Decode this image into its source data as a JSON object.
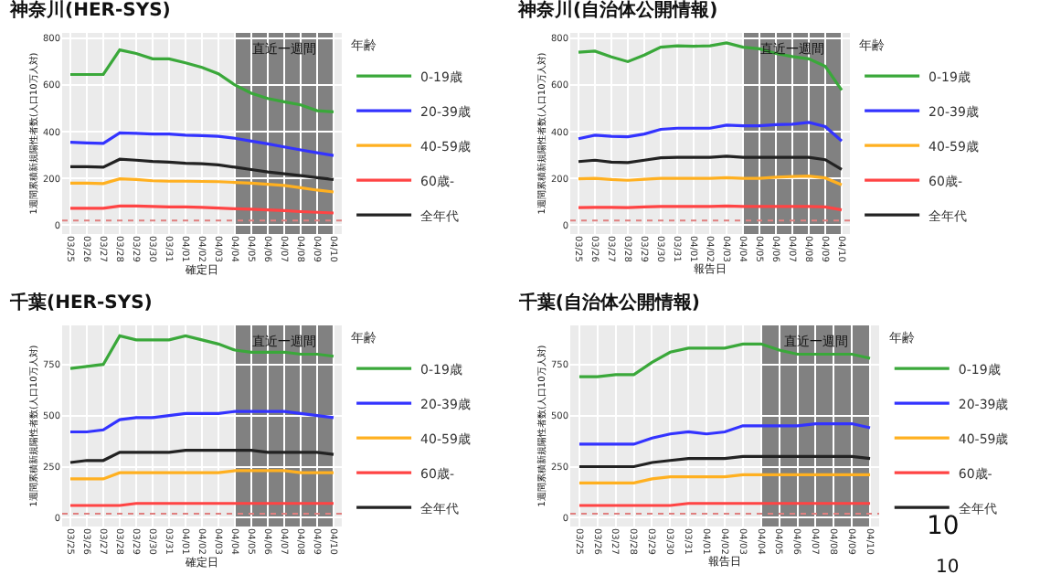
{
  "chart_data": [
    {
      "type": "line",
      "title": "神奈川(HER-SYS)",
      "xlabel": "確定日",
      "ylabel": "1週間累積新規陽性者数(人口10万人対)",
      "legend_title": "年齢",
      "legend": "right",
      "grid": true,
      "categories": [
        "03/25",
        "03/26",
        "03/27",
        "03/28",
        "03/29",
        "03/30",
        "03/31",
        "04/01",
        "04/02",
        "04/03",
        "04/04",
        "04/05",
        "04/06",
        "04/07",
        "04/08",
        "04/09",
        "04/10"
      ],
      "ylim": [
        -38,
        823
      ],
      "yticks": [
        0,
        200,
        400,
        600,
        800
      ],
      "series": [
        {
          "name": "0-19歳",
          "color": "#3aa83a",
          "values": [
            645,
            645,
            645,
            750,
            735,
            712,
            712,
            695,
            675,
            648,
            600,
            565,
            542,
            528,
            515,
            490,
            485
          ]
        },
        {
          "name": "20-39歳",
          "color": "#3333ff",
          "values": [
            355,
            352,
            350,
            395,
            393,
            390,
            390,
            385,
            383,
            380,
            372,
            360,
            348,
            335,
            322,
            310,
            298
          ]
        },
        {
          "name": "40-59歳",
          "color": "#ffb020",
          "values": [
            180,
            180,
            178,
            198,
            195,
            190,
            188,
            188,
            187,
            186,
            183,
            180,
            175,
            170,
            160,
            150,
            142
          ]
        },
        {
          "name": "60歳-",
          "color": "#ff4444",
          "values": [
            72,
            72,
            72,
            82,
            82,
            80,
            78,
            78,
            76,
            73,
            70,
            68,
            65,
            62,
            58,
            55,
            52
          ]
        },
        {
          "name": "全年代",
          "color": "#222222",
          "values": [
            250,
            250,
            248,
            282,
            278,
            273,
            270,
            265,
            263,
            258,
            248,
            238,
            228,
            220,
            212,
            203,
            195
          ]
        }
      ],
      "bands": [
        {
          "axis": "x",
          "from": "04/04",
          "to": "04/10",
          "label": "直近一週間",
          "color": "#6e6e6e"
        }
      ],
      "ref_lines": [
        {
          "axis": "y",
          "value": 20,
          "color": "#e08080",
          "line_style": "dotted"
        }
      ]
    },
    {
      "type": "line",
      "title": "神奈川(自治体公開情報)",
      "xlabel": "報告日",
      "ylabel": "1週間累積新規陽性者数(人口10万人対)",
      "legend_title": "年齢",
      "legend": "right",
      "grid": true,
      "categories": [
        "03/25",
        "03/26",
        "03/27",
        "03/28",
        "03/29",
        "03/30",
        "03/31",
        "04/01",
        "04/02",
        "04/03",
        "04/04",
        "04/05",
        "04/06",
        "04/07",
        "04/08",
        "04/09",
        "04/10"
      ],
      "ylim": [
        -38,
        823
      ],
      "yticks": [
        0,
        200,
        400,
        600,
        800
      ],
      "series": [
        {
          "name": "0-19歳",
          "color": "#3aa83a",
          "values": [
            740,
            745,
            720,
            700,
            728,
            762,
            768,
            766,
            768,
            780,
            762,
            755,
            735,
            722,
            712,
            680,
            578
          ]
        },
        {
          "name": "20-39歳",
          "color": "#3333ff",
          "values": [
            370,
            385,
            380,
            378,
            390,
            410,
            415,
            415,
            415,
            428,
            425,
            425,
            430,
            432,
            440,
            422,
            360
          ]
        },
        {
          "name": "40-59歳",
          "color": "#ffb020",
          "values": [
            198,
            200,
            195,
            192,
            196,
            200,
            200,
            200,
            200,
            203,
            200,
            200,
            205,
            208,
            210,
            202,
            172
          ]
        },
        {
          "name": "60歳-",
          "color": "#ff4444",
          "values": [
            75,
            76,
            76,
            75,
            78,
            80,
            80,
            80,
            80,
            82,
            80,
            80,
            80,
            80,
            80,
            78,
            65
          ]
        },
        {
          "name": "全年代",
          "color": "#222222",
          "values": [
            272,
            278,
            270,
            268,
            278,
            288,
            290,
            290,
            290,
            295,
            290,
            290,
            290,
            290,
            290,
            280,
            238
          ]
        }
      ],
      "bands": [
        {
          "axis": "x",
          "from": "04/04",
          "to": "04/10",
          "label": "直近一週間",
          "color": "#6e6e6e"
        }
      ],
      "ref_lines": [
        {
          "axis": "y",
          "value": 20,
          "color": "#e08080",
          "line_style": "dotted"
        }
      ]
    },
    {
      "type": "line",
      "title": "千葉(HER-SYS)",
      "xlabel": "確定日",
      "ylabel": "1週間累積新規陽性者数(人口10万人対)",
      "legend_title": "年齢",
      "legend": "right",
      "grid": true,
      "categories": [
        "03/25",
        "03/26",
        "03/27",
        "03/28",
        "03/29",
        "03/30",
        "03/31",
        "04/01",
        "04/02",
        "04/03",
        "04/04",
        "04/05",
        "04/06",
        "04/07",
        "04/08",
        "04/09",
        "04/10"
      ],
      "ylim": [
        -43,
        941
      ],
      "yticks": [
        0,
        250,
        500,
        750
      ],
      "series": [
        {
          "name": "0-19歳",
          "color": "#3aa83a",
          "values": [
            730,
            740,
            750,
            890,
            870,
            870,
            870,
            890,
            870,
            850,
            820,
            810,
            810,
            810,
            800,
            800,
            790
          ]
        },
        {
          "name": "20-39歳",
          "color": "#3333ff",
          "values": [
            420,
            420,
            430,
            480,
            490,
            490,
            500,
            510,
            510,
            510,
            520,
            520,
            520,
            520,
            510,
            500,
            490
          ]
        },
        {
          "name": "40-59歳",
          "color": "#ffb020",
          "values": [
            190,
            190,
            190,
            220,
            220,
            220,
            220,
            220,
            220,
            220,
            230,
            230,
            230,
            230,
            220,
            220,
            220
          ]
        },
        {
          "name": "60歳-",
          "color": "#ff4444",
          "values": [
            60,
            60,
            60,
            60,
            70,
            70,
            70,
            70,
            70,
            70,
            70,
            70,
            70,
            70,
            70,
            70,
            70
          ]
        },
        {
          "name": "全年代",
          "color": "#222222",
          "values": [
            270,
            280,
            280,
            320,
            320,
            320,
            320,
            330,
            330,
            330,
            330,
            330,
            320,
            320,
            320,
            320,
            310
          ]
        }
      ],
      "bands": [
        {
          "axis": "x",
          "from": "04/04",
          "to": "04/10",
          "label": "直近一週間",
          "color": "#6e6e6e"
        }
      ],
      "ref_lines": [
        {
          "axis": "y",
          "value": 20,
          "color": "#e08080",
          "line_style": "dotted"
        }
      ]
    },
    {
      "type": "line",
      "title": "千葉(自治体公開情報)",
      "xlabel": "報告日",
      "ylabel": "1週間累積新規陽性者数(人口10万人対)",
      "legend_title": "年齢",
      "legend": "right",
      "grid": true,
      "categories": [
        "03/25",
        "03/26",
        "03/27",
        "03/28",
        "03/29",
        "03/30",
        "03/31",
        "04/01",
        "04/02",
        "04/03",
        "04/04",
        "04/05",
        "04/06",
        "04/07",
        "04/08",
        "04/09",
        "04/10"
      ],
      "ylim": [
        -43,
        941
      ],
      "yticks": [
        0,
        250,
        500,
        750
      ],
      "series": [
        {
          "name": "0-19歳",
          "color": "#3aa83a",
          "values": [
            690,
            690,
            700,
            700,
            760,
            810,
            830,
            830,
            830,
            850,
            850,
            820,
            800,
            800,
            800,
            800,
            780
          ]
        },
        {
          "name": "20-39歳",
          "color": "#3333ff",
          "values": [
            360,
            360,
            360,
            360,
            390,
            410,
            420,
            410,
            420,
            450,
            450,
            450,
            450,
            460,
            460,
            460,
            440
          ]
        },
        {
          "name": "40-59歳",
          "color": "#ffb020",
          "values": [
            170,
            170,
            170,
            170,
            190,
            200,
            200,
            200,
            200,
            210,
            210,
            210,
            210,
            210,
            210,
            210,
            210
          ]
        },
        {
          "name": "60歳-",
          "color": "#ff4444",
          "values": [
            60,
            60,
            60,
            60,
            60,
            60,
            70,
            70,
            70,
            70,
            70,
            70,
            70,
            70,
            70,
            70,
            70
          ]
        },
        {
          "name": "全年代",
          "color": "#222222",
          "values": [
            250,
            250,
            250,
            250,
            270,
            280,
            290,
            290,
            290,
            300,
            300,
            300,
            300,
            300,
            300,
            300,
            290
          ]
        }
      ],
      "bands": [
        {
          "axis": "x",
          "from": "04/04",
          "to": "04/10",
          "label": "直近一週間",
          "color": "#6e6e6e"
        }
      ],
      "ref_lines": [
        {
          "axis": "y",
          "value": 20,
          "color": "#e08080",
          "line_style": "dotted"
        }
      ],
      "annotations": [
        "10",
        "10"
      ]
    }
  ]
}
